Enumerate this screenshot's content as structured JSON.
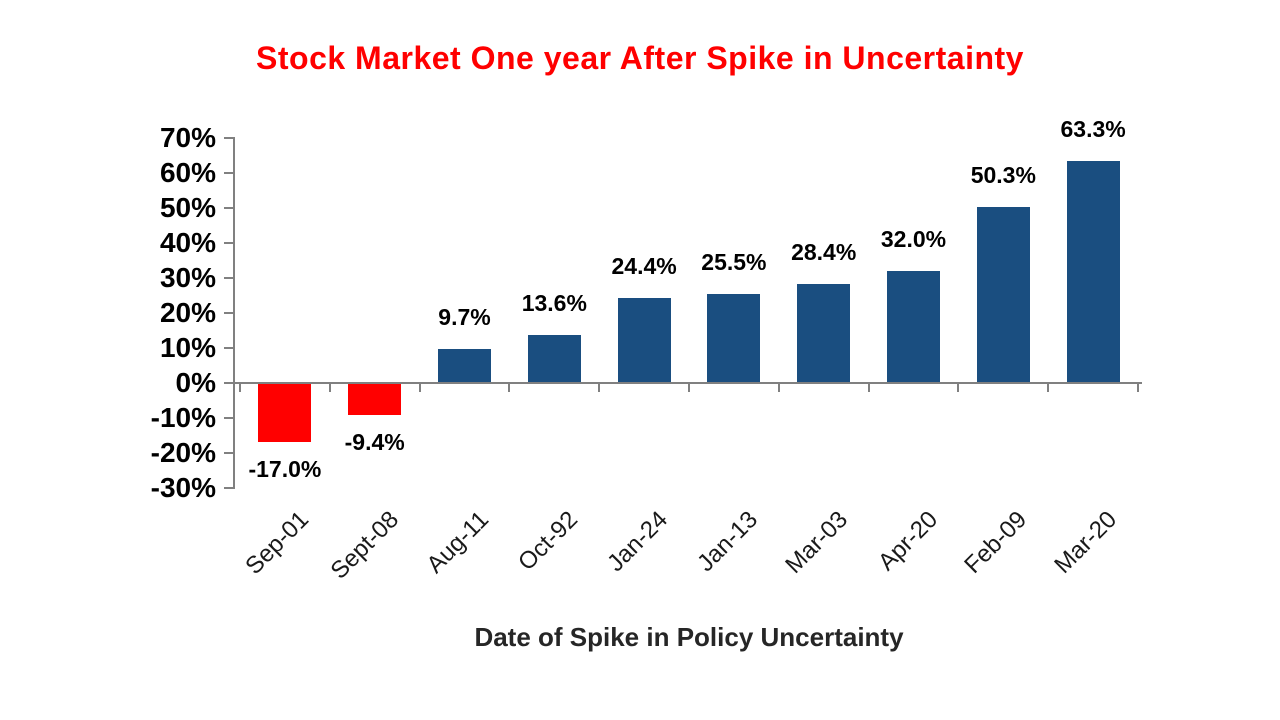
{
  "page": {
    "background": "#ffffff"
  },
  "chart_data": {
    "type": "bar",
    "title": "Stock Market One year After Spike in Uncertainty",
    "title_color": "#ff0000",
    "xlabel": "Date of Spike in Policy Uncertainty",
    "ylabel": "",
    "categories": [
      "Sep-01",
      "Sept-08",
      "Aug-11",
      "Oct-92",
      "Jan-24",
      "Jan-13",
      "Mar-03",
      "Apr-20",
      "Feb-09",
      "Mar-20"
    ],
    "values": [
      -17.0,
      -9.4,
      9.7,
      13.6,
      24.4,
      25.5,
      28.4,
      32.0,
      50.3,
      63.3
    ],
    "value_labels": [
      "-17.0%",
      "-9.4%",
      "9.7%",
      "13.6%",
      "24.4%",
      "25.5%",
      "28.4%",
      "32.0%",
      "50.3%",
      "63.3%"
    ],
    "ylim": [
      -30,
      70
    ],
    "ytick_step": 10,
    "ytick_labels": [
      "70%",
      "60%",
      "50%",
      "40%",
      "30%",
      "20%",
      "10%",
      "0%",
      "-10%",
      "-20%",
      "-30%"
    ],
    "grid": false,
    "legend": null,
    "colors": {
      "positive_bar": "#1a4e80",
      "negative_bar": "#ff0000",
      "axis": "#808080",
      "data_label": "#000000",
      "tick_label": "#000000",
      "xlabel_color": "#262626"
    }
  }
}
